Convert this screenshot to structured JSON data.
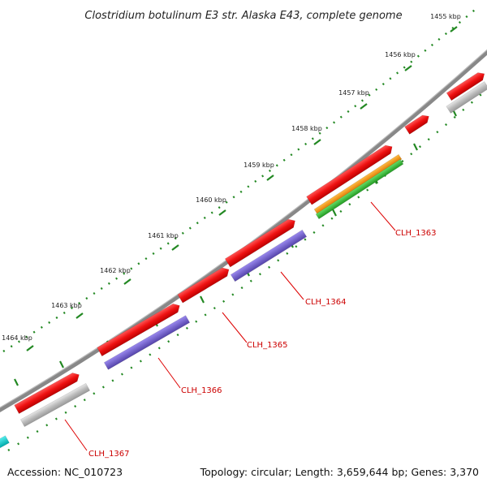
{
  "title": "Clostridium botulinum E3 str. Alaska E43, complete genome",
  "footer": {
    "accession": "Accession: NC_010723",
    "summary": "Topology: circular; Length: 3,659,644 bp; Genes: 3,370"
  },
  "colors": {
    "backbone": "#888888",
    "cds": "#ee1111",
    "gene": "#bbbbbb",
    "purple": "#7766cc",
    "orange": "#ff9900",
    "green": "#33bb33",
    "cyan": "#11cccc",
    "tick": "#228822",
    "callout": "#dd0000"
  },
  "ticks": [
    {
      "label": "1455 kbp",
      "kbp": 1455
    },
    {
      "label": "1456 kbp",
      "kbp": 1456
    },
    {
      "label": "1457 kbp",
      "kbp": 1457
    },
    {
      "label": "1458 kbp",
      "kbp": 1458
    },
    {
      "label": "1459 kbp",
      "kbp": 1459
    },
    {
      "label": "1460 kbp",
      "kbp": 1460
    },
    {
      "label": "1461 kbp",
      "kbp": 1461
    },
    {
      "label": "1462 kbp",
      "kbp": 1462
    },
    {
      "label": "1463 kbp",
      "kbp": 1463
    },
    {
      "label": "1464 kbp",
      "kbp": 1464
    }
  ],
  "genes": [
    {
      "name": "CLH_1363"
    },
    {
      "name": "CLH_1364"
    },
    {
      "name": "CLH_1365"
    },
    {
      "name": "CLH_1366"
    },
    {
      "name": "CLH_1367"
    }
  ]
}
